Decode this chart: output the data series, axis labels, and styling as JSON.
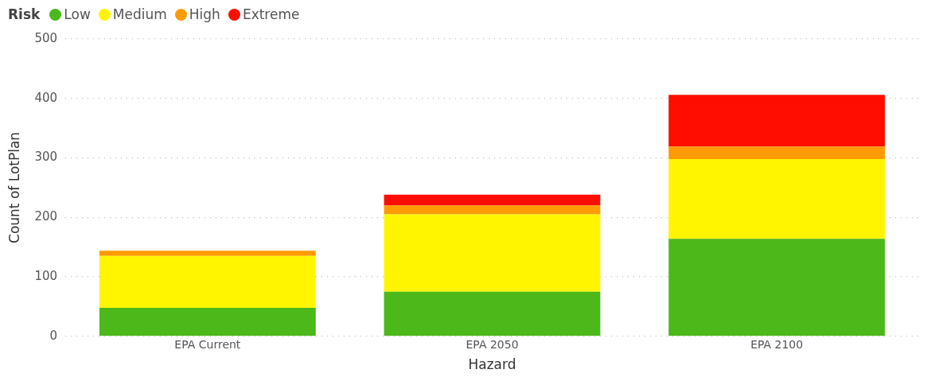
{
  "chart_data": {
    "type": "bar",
    "stacked": true,
    "xlabel": "Hazard",
    "ylabel": "Count of LotPlan",
    "legend_title": "Risk",
    "legend": "top left",
    "grid": "y",
    "categories": [
      "EPA Current",
      "EPA 2050",
      "EPA 2100"
    ],
    "series": [
      {
        "name": "Low",
        "color": "#4cb81a",
        "values": [
          48,
          75,
          164
        ]
      },
      {
        "name": "Medium",
        "color": "#fff500",
        "values": [
          87,
          130,
          134
        ]
      },
      {
        "name": "High",
        "color": "#ff9a00",
        "values": [
          9,
          15,
          21
        ]
      },
      {
        "name": "Extreme",
        "color": "#ff0d00",
        "values": [
          null,
          18,
          87
        ]
      }
    ],
    "ylim": [
      0,
      500
    ],
    "yticks": [
      0,
      100,
      200,
      300,
      400,
      500
    ]
  }
}
